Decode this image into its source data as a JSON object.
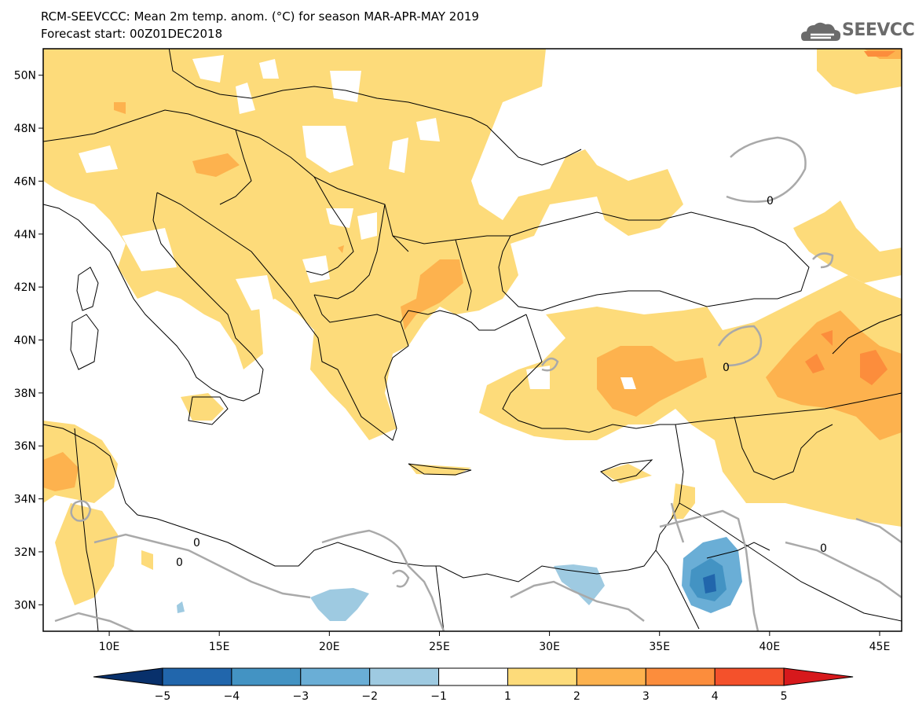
{
  "title_line1": "RCM-SEEVCCC: Mean 2m temp. anom. (°C) for season MAR-APR-MAY 2019",
  "title_line2": "Forecast start: 00Z01DEC2018",
  "logo_text": "SEEVCCC",
  "logo_icon": "cloud-icon",
  "map": {
    "lon_range": [
      7,
      46
    ],
    "lat_range": [
      29,
      51
    ],
    "lat_labels": [
      "50N",
      "48N",
      "46N",
      "44N",
      "42N",
      "40N",
      "38N",
      "36N",
      "34N",
      "32N",
      "30N"
    ],
    "lat_values": [
      50,
      48,
      46,
      44,
      42,
      40,
      38,
      36,
      34,
      32,
      30
    ],
    "lon_labels": [
      "10E",
      "15E",
      "20E",
      "25E",
      "30E",
      "35E",
      "40E",
      "45E"
    ],
    "lon_values": [
      10,
      15,
      20,
      25,
      30,
      35,
      40,
      45
    ],
    "contour_label": "0"
  },
  "colorbar": {
    "labels": [
      "−5",
      "−4",
      "−3",
      "−2",
      "−1",
      "1",
      "2",
      "3",
      "4",
      "5"
    ],
    "colors": [
      "#08306b",
      "#2166ac",
      "#4393c3",
      "#6aaed6",
      "#9ecae1",
      "#ffffff",
      "#fddb7a",
      "#fdb24e",
      "#fc8d3c",
      "#f4512b",
      "#d7191c"
    ]
  },
  "shade_colors": {
    "one_to_two": "#fddb7a",
    "two_to_three": "#fdb24e",
    "three_to_four": "#fc8d3c",
    "minus_one_to_two": "#9ecae1",
    "minus_two_to_three": "#6aaed6",
    "minus_three_to_four": "#4393c3"
  }
}
